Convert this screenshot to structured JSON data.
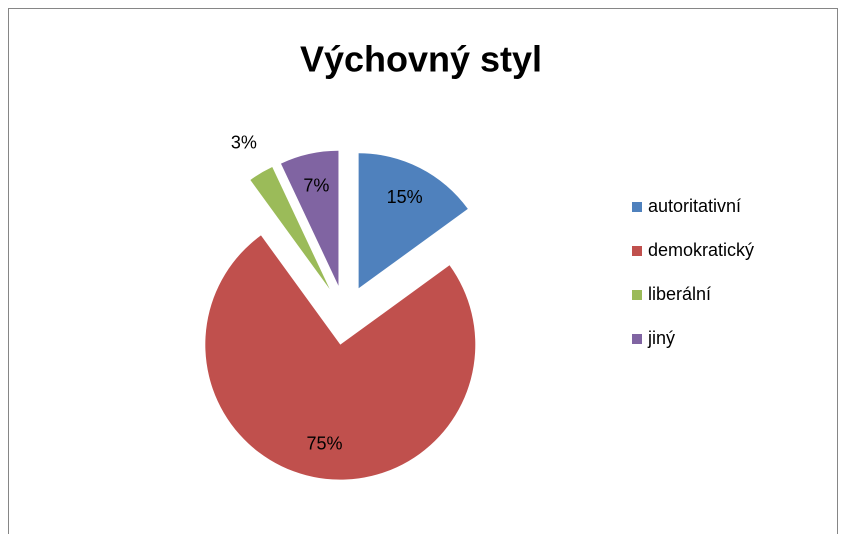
{
  "chart_data": {
    "type": "pie",
    "title": "Výchovný styl",
    "categories": [
      "autoritativní",
      "demokratický",
      "liberální",
      "jiný"
    ],
    "values": [
      15,
      75,
      3,
      7
    ],
    "value_labels": [
      "15%",
      "75%",
      "3%",
      "7%"
    ],
    "colors": [
      "#4f81bd",
      "#c0504d",
      "#9bbb59",
      "#8064a2"
    ],
    "exploded": true,
    "legend": "right"
  }
}
